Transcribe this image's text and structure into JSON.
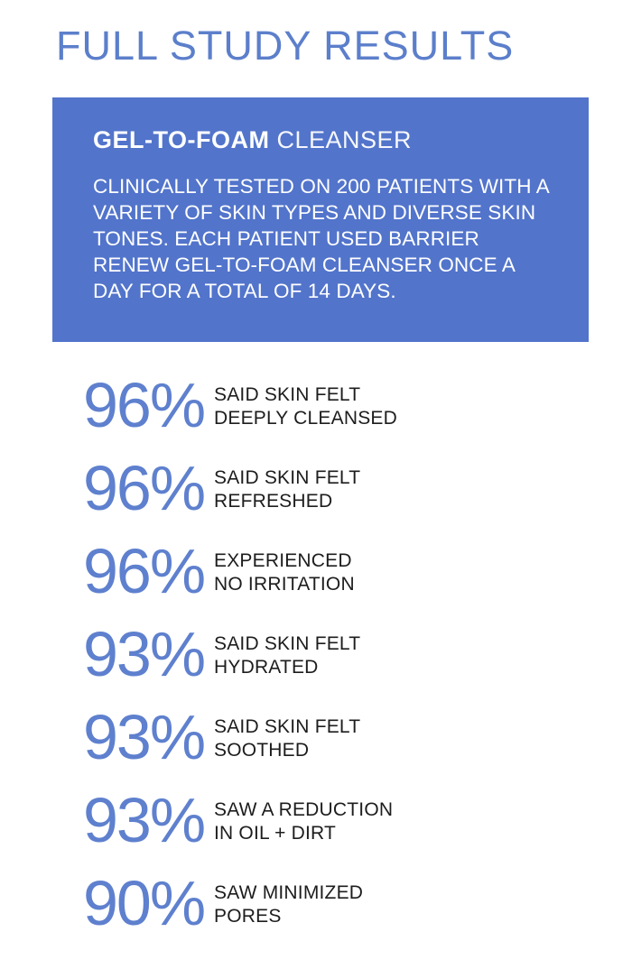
{
  "page": {
    "title": "FULL STUDY RESULTS"
  },
  "study_card": {
    "heading_bold": "GEL-TO-FOAM",
    "heading_light": "CLEANSER",
    "body": "CLINICALLY TESTED ON 200 PATIENTS WITH A VARIETY OF SKIN TYPES AND DIVERSE SKIN TONES. EACH PATIENT USED BARRIER RENEW GEL-TO-FOAM CLEANSER ONCE A DAY FOR A TOTAL OF 14 DAYS."
  },
  "stats": [
    {
      "value": "96%",
      "lines": [
        "SAID SKIN FELT",
        "DEEPLY CLEANSED"
      ]
    },
    {
      "value": "96%",
      "lines": [
        "SAID SKIN FELT",
        "REFRESHED"
      ]
    },
    {
      "value": "96%",
      "lines": [
        "EXPERIENCED",
        "NO IRRITATION"
      ]
    },
    {
      "value": "93%",
      "lines": [
        "SAID SKIN FELT",
        "HYDRATED"
      ]
    },
    {
      "value": "93%",
      "lines": [
        "SAID SKIN FELT",
        "SOOTHED"
      ]
    },
    {
      "value": "93%",
      "lines": [
        "SAW A REDUCTION",
        "IN OIL + DIRT"
      ]
    },
    {
      "value": "90%",
      "lines": [
        "SAW MINIMIZED",
        "PORES"
      ]
    }
  ],
  "colors": {
    "card_background": "#5274CB",
    "stat_value_blue": "#5E80CE",
    "title_blue": "#5C7FCB",
    "label_dark": "#1D1D1D",
    "card_text": "#FFFFFF"
  }
}
